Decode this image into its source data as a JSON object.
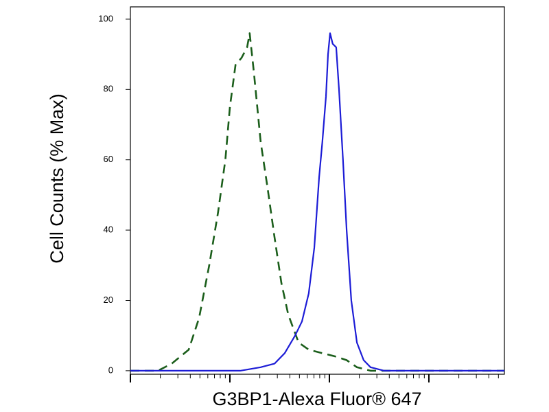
{
  "chart_data": {
    "type": "line",
    "xlabel": "G3BP1-Alexa Fluor® 647",
    "ylabel": "Cell Counts (% Max)",
    "xscale": "log",
    "xlim": [
      1,
      5740
    ],
    "ylim": [
      -1,
      103.5
    ],
    "yticks": [
      0,
      20,
      40,
      60,
      80,
      100
    ],
    "xticks": [
      1,
      2,
      3,
      4,
      5,
      6,
      7,
      8,
      9,
      10,
      20,
      30,
      40,
      50,
      60,
      70,
      80,
      90,
      100,
      200,
      300,
      400,
      500,
      600,
      700,
      800,
      900,
      1000,
      2000,
      3000,
      4000,
      5000
    ],
    "series": [
      {
        "color": "#1b5e1b",
        "dashed": true,
        "x": [
          1,
          1.89,
          2.6,
          3.86,
          4.9,
          6.2,
          7.6,
          9.0,
          10,
          11.4,
          13.1,
          14.9,
          15.8,
          17.4,
          20.4,
          23.9,
          28.1,
          32.9,
          38.6,
          49,
          62,
          85,
          117,
          149,
          189,
          259,
          5740
        ],
        "values": [
          0,
          0,
          2,
          6,
          15,
          30,
          45,
          60,
          75,
          87,
          89,
          92,
          96,
          85,
          65,
          52,
          38,
          25,
          16,
          8,
          6,
          5,
          4,
          3,
          1,
          0,
          0
        ]
      },
      {
        "color": "#1c1cd6",
        "dashed": false,
        "x": [
          1,
          12.7,
          20.4,
          28.1,
          35.6,
          45.2,
          53,
          62,
          70.5,
          78.8,
          85,
          92.4,
          96.9,
          101.6,
          108,
          117,
          125,
          137,
          149,
          166,
          189,
          221,
          259,
          356,
          5740
        ],
        "values": [
          0,
          0,
          1,
          2,
          5,
          10,
          14,
          22,
          35,
          55,
          65,
          78,
          90,
          96,
          93,
          92,
          80,
          60,
          40,
          20,
          8,
          3,
          1,
          0,
          0
        ]
      }
    ]
  }
}
